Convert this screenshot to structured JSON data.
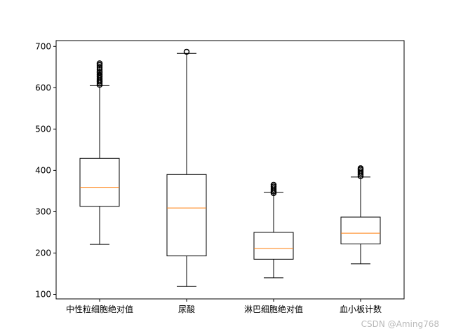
{
  "chart_data": {
    "type": "boxplot",
    "categories": [
      "中性粒细胞绝对值",
      "尿酸",
      "淋巴细胞绝对值",
      "血小板计数"
    ],
    "boxes": [
      {
        "whisker_low": 221,
        "q1": 313,
        "median": 359,
        "q3": 429,
        "whisker_high": 605,
        "outliers": [
          607,
          611,
          615,
          619,
          623,
          627,
          631,
          636,
          640,
          645,
          650,
          655,
          659
        ]
      },
      {
        "whisker_low": 119,
        "q1": 193,
        "median": 309,
        "q3": 390,
        "whisker_high": 683,
        "outliers": [
          687
        ]
      },
      {
        "whisker_low": 140,
        "q1": 185,
        "median": 211,
        "q3": 250,
        "whisker_high": 347,
        "outliers": [
          345,
          349,
          353,
          357,
          361,
          365
        ]
      },
      {
        "whisker_low": 174,
        "q1": 222,
        "median": 248,
        "q3": 287,
        "whisker_high": 384,
        "outliers": [
          386,
          390,
          394,
          398,
          402,
          405
        ]
      }
    ],
    "yticks": [
      100,
      200,
      300,
      400,
      500,
      600,
      700
    ],
    "ylim": [
      89,
      714
    ],
    "grid": false,
    "colors": {
      "box": "#000000",
      "median": "#ff7f0e"
    }
  },
  "watermark": "CSDN @Aming768"
}
